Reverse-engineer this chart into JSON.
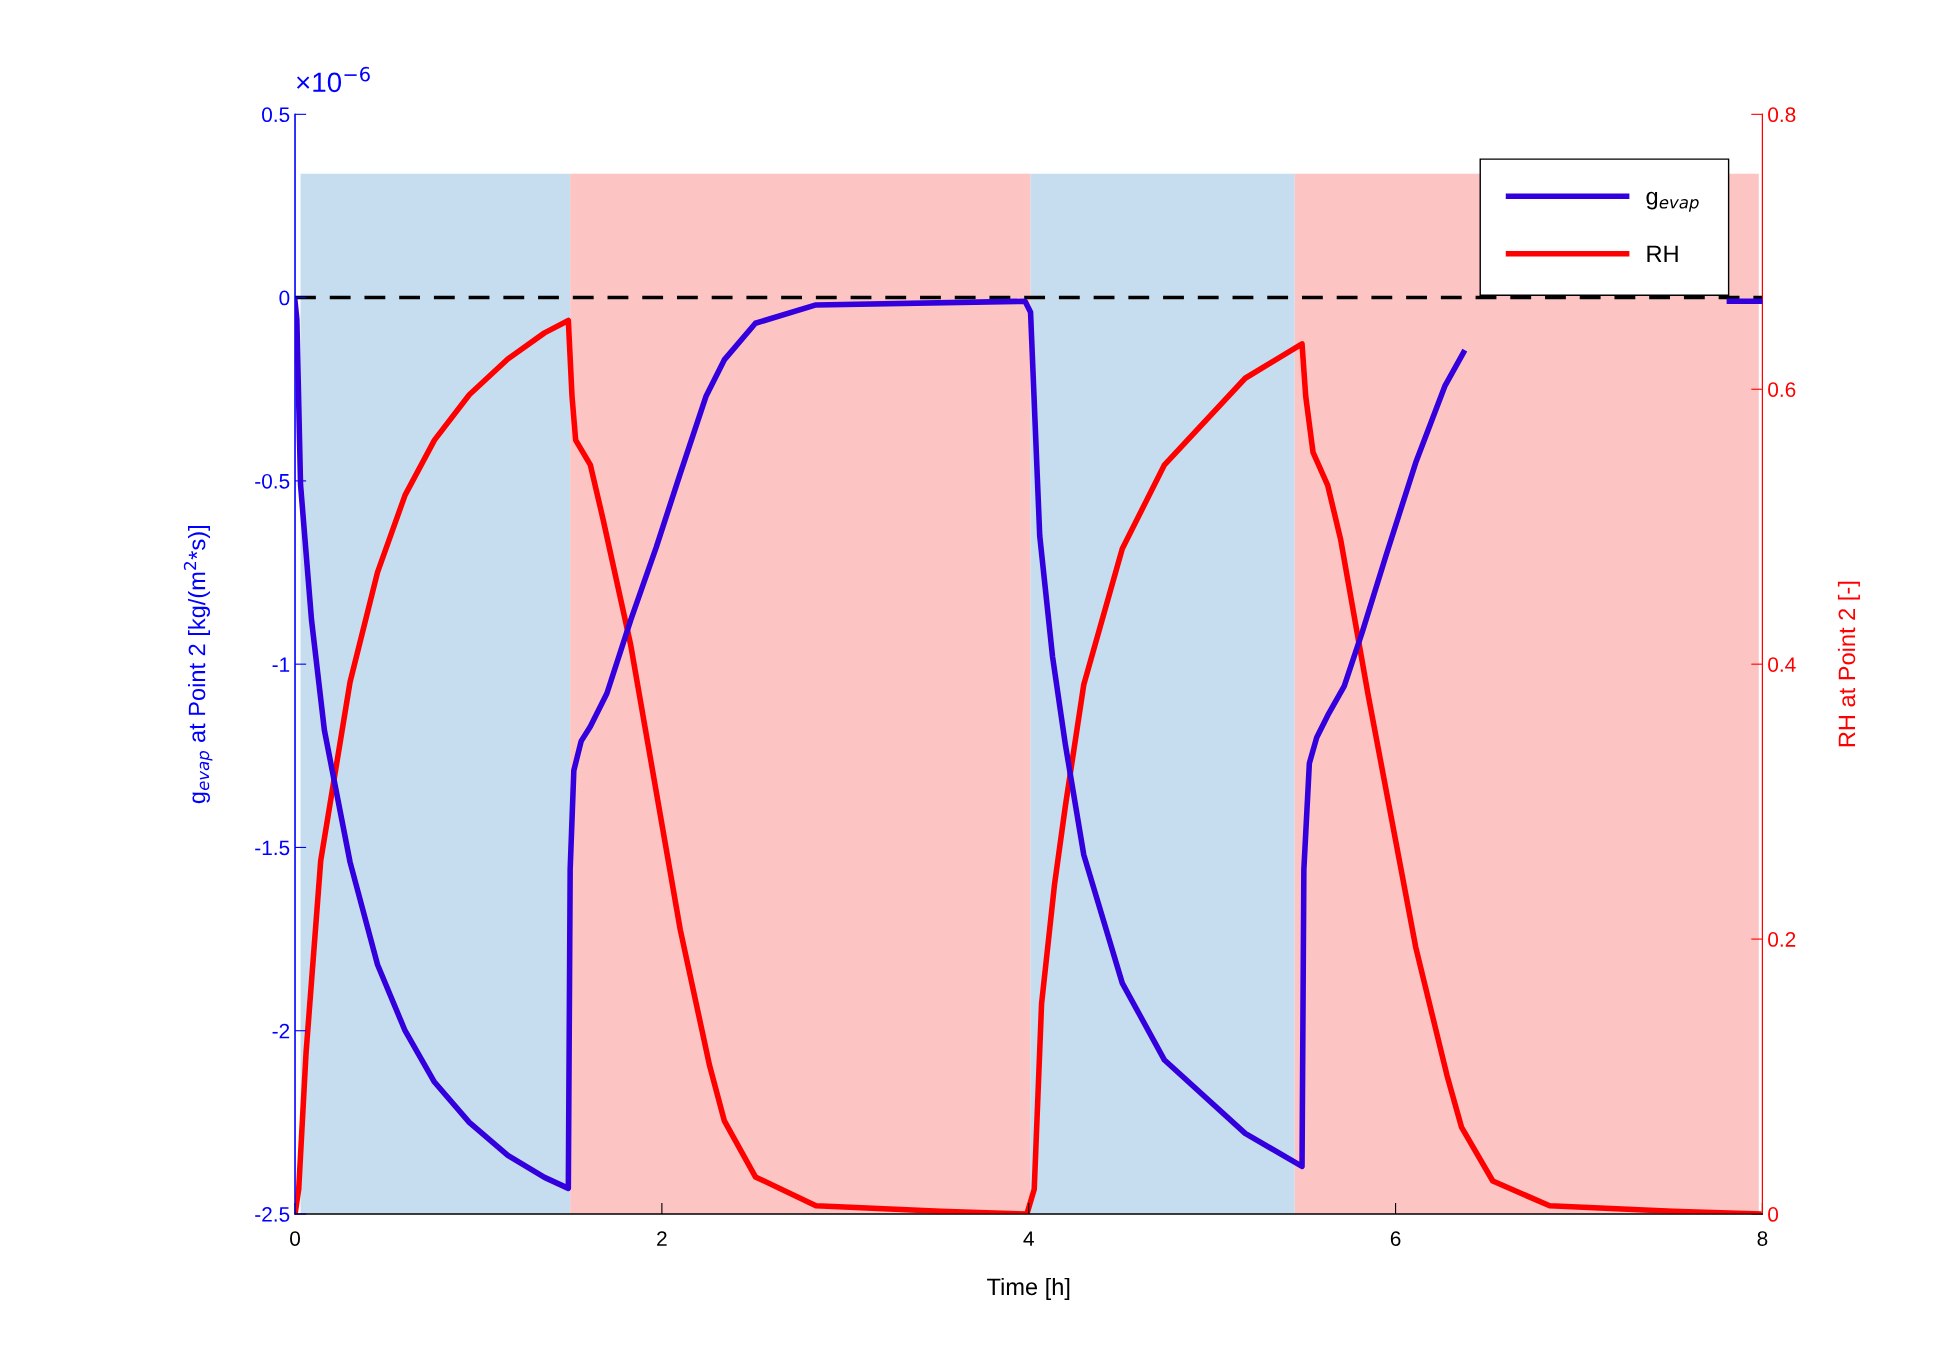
{
  "chart_data": {
    "type": "line",
    "xlabel": "Time [h]",
    "ylabel": "g$_{evap}$ at Point 2 [kg/(m$^{2}$*s)]",
    "y2label": "RH at Point 2 [-]",
    "annotations": [
      "×10$^{−6}$"
    ],
    "xlim": [
      0,
      8
    ],
    "xticks": [
      0,
      2,
      4,
      6,
      8
    ],
    "ylim": [
      -2.5,
      0.5
    ],
    "yticks": [
      -2.5,
      -2,
      -1.5,
      -1,
      -0.5,
      0,
      0.5
    ],
    "y2lim": [
      0,
      0.8
    ],
    "y2ticks": [
      0,
      0.2,
      0.4,
      0.6,
      0.8
    ],
    "grid": false,
    "legend": "top right",
    "line_style": "solid",
    "marker": "none",
    "ref_lines": [
      {
        "axis": "y",
        "value": 0,
        "color": "#000000",
        "line_style": "dashed"
      }
    ],
    "bands": [
      {
        "axis": "x",
        "from": 0.03,
        "to": 1.5,
        "color": "#c5ddef"
      },
      {
        "axis": "x",
        "from": 1.5,
        "to": 4.01,
        "color": "#fdc4c4"
      },
      {
        "axis": "x",
        "from": 4.01,
        "to": 5.45,
        "color": "#c5ddef"
      },
      {
        "axis": "x",
        "from": 5.45,
        "to": 7.98,
        "color": "#fdc4c4"
      }
    ],
    "series": [
      {
        "name": "g$_{evap}$",
        "color": "#3300dd",
        "x": [
          0,
          0.01,
          0.03,
          0.09,
          0.16,
          0.3,
          0.45,
          0.6,
          0.76,
          0.95,
          1.16,
          1.36,
          1.49,
          1.5,
          1.52,
          1.56,
          1.61,
          1.7,
          1.83,
          1.97,
          2.1,
          2.24,
          2.34,
          2.51,
          2.84,
          3.98,
          4.01,
          4.06,
          4.13,
          4.2,
          4.3,
          4.51,
          4.74,
          5.18,
          5.49,
          5.5,
          5.53,
          5.57,
          5.63,
          5.72,
          5.82,
          5.95,
          6.11,
          6.27,
          6.37,
          7.0,
          7.82,
          8.0
        ],
        "values": [
          -0.01,
          -0.06,
          -0.51,
          -0.88,
          -1.18,
          -1.54,
          -1.82,
          -2.0,
          -2.14,
          -2.25,
          -2.34,
          -2.4,
          -2.43,
          -1.56,
          -1.29,
          -1.21,
          -1.17,
          -1.08,
          -0.88,
          -0.68,
          -0.48,
          -0.27,
          -0.17,
          -0.07,
          -0.02,
          -0.01,
          -0.04,
          -0.65,
          -0.98,
          -1.22,
          -1.52,
          -1.87,
          -2.08,
          -2.28,
          -2.37,
          -1.56,
          -1.27,
          -1.2,
          -1.14,
          -1.06,
          -0.91,
          -0.7,
          -0.45,
          -0.24,
          -0.15,
          null,
          -0.01,
          -0.01
        ]
      },
      {
        "name": "RH",
        "color": "#ff0000",
        "axis": "y2",
        "x": [
          0,
          0.02,
          0.06,
          0.14,
          0.3,
          0.45,
          0.6,
          0.76,
          0.95,
          1.16,
          1.36,
          1.49,
          1.51,
          1.53,
          1.61,
          1.68,
          1.83,
          2.1,
          2.26,
          2.34,
          2.51,
          2.84,
          3.52,
          3.99,
          4.03,
          4.07,
          4.14,
          4.2,
          4.3,
          4.51,
          4.74,
          5.18,
          5.49,
          5.51,
          5.55,
          5.63,
          5.7,
          5.85,
          6.11,
          6.28,
          6.36,
          6.53,
          6.84,
          7.51,
          7.98
        ],
        "values": [
          0,
          0.018,
          0.117,
          0.257,
          0.387,
          0.467,
          0.523,
          0.563,
          0.596,
          0.622,
          0.641,
          0.65,
          0.595,
          0.563,
          0.545,
          0.505,
          0.414,
          0.207,
          0.108,
          0.068,
          0.027,
          0.006,
          0.002,
          0,
          0.018,
          0.153,
          0.239,
          0.297,
          0.385,
          0.484,
          0.545,
          0.608,
          0.633,
          0.595,
          0.554,
          0.53,
          0.491,
          0.378,
          0.194,
          0.101,
          0.063,
          0.024,
          0.006,
          0.002,
          0
        ]
      }
    ]
  }
}
